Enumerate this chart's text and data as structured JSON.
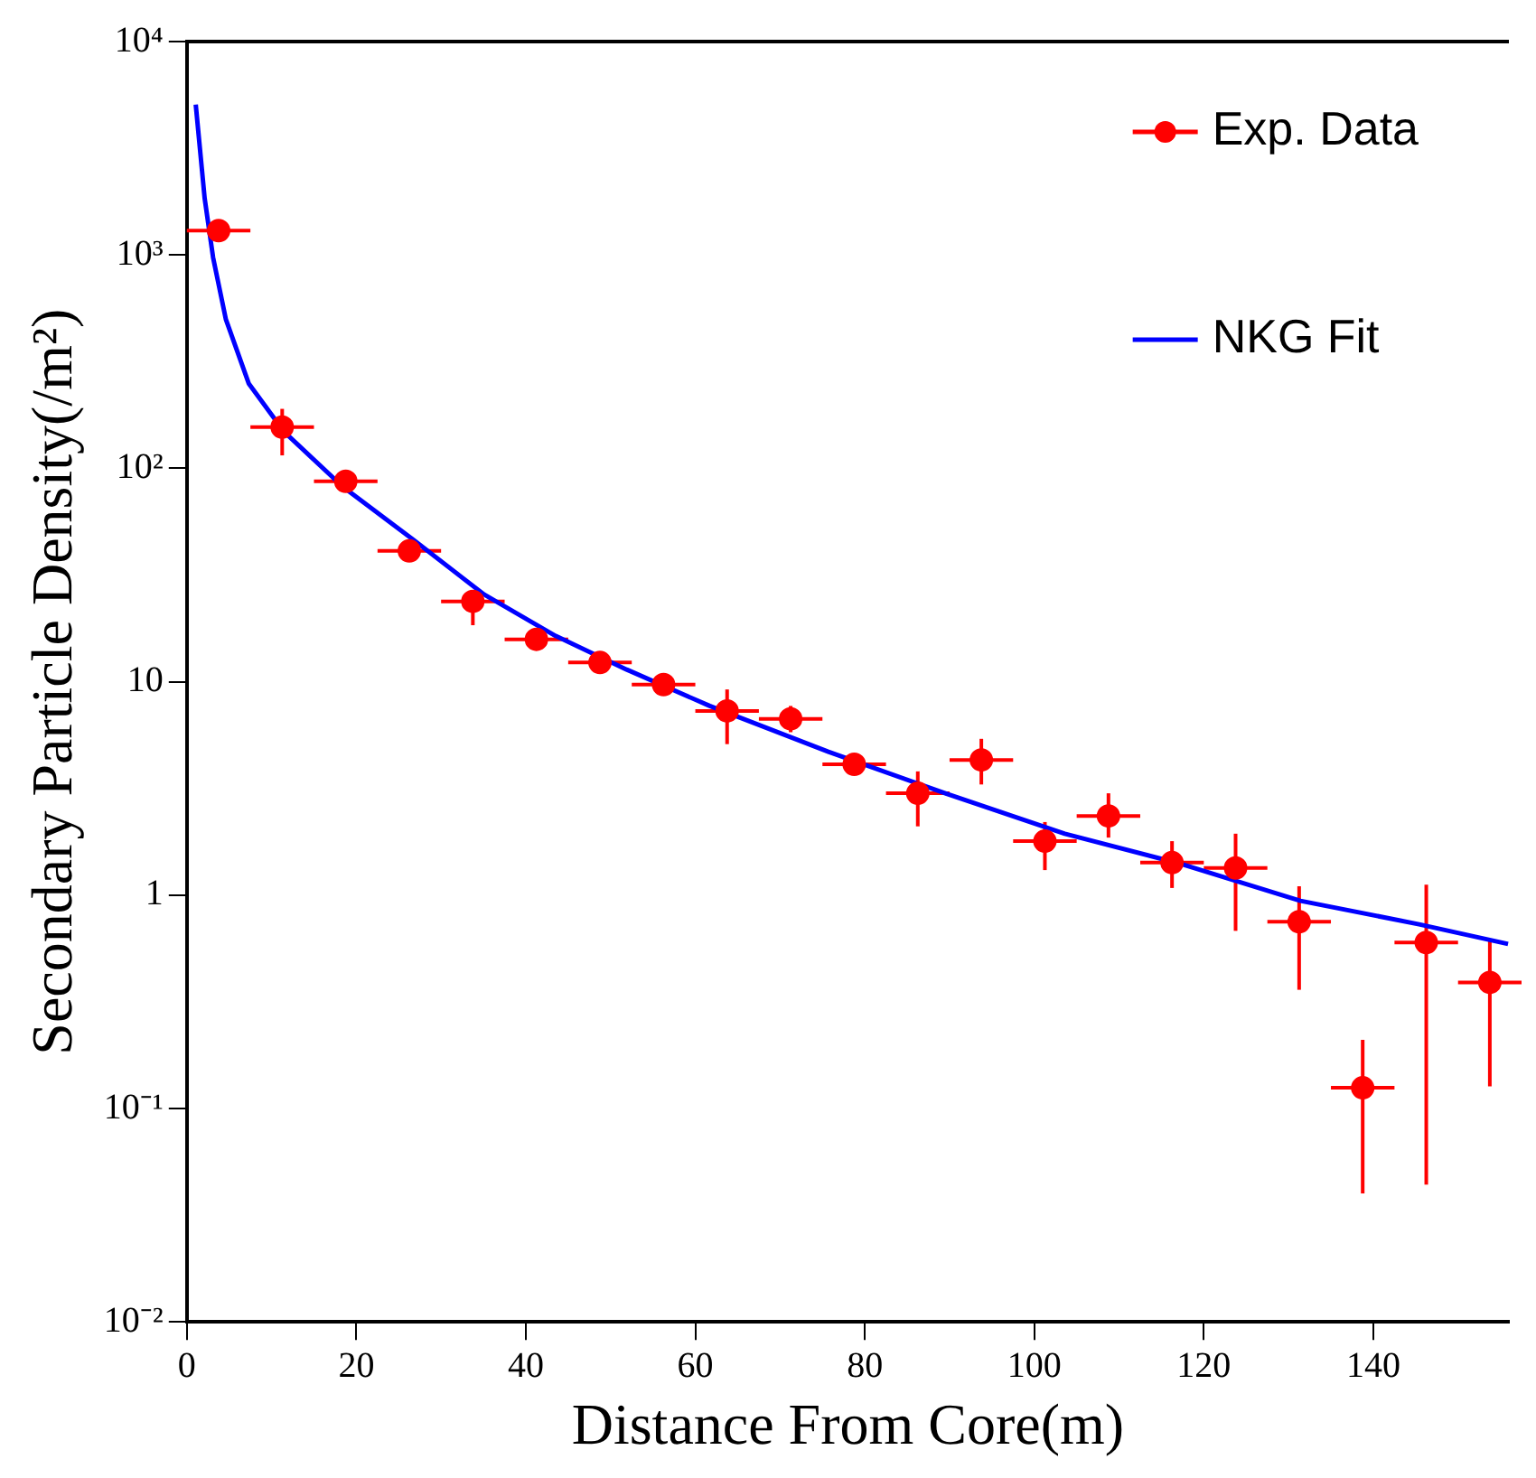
{
  "chart_data": {
    "type": "scatter",
    "xlabel": "Distance From Core(m)",
    "ylabel": "Secondary Particle Density(/m²)",
    "log": "y",
    "grid": false,
    "legend": "top right",
    "marker": "circle",
    "xlim": [
      0,
      156
    ],
    "xticks": [
      0,
      20,
      40,
      60,
      80,
      100,
      120,
      140
    ],
    "ylim": [
      0.01,
      10000
    ],
    "yticks": [
      {
        "value": 0.01,
        "label": "10⁻²"
      },
      {
        "value": 0.1,
        "label": "10⁻¹"
      },
      {
        "value": 1,
        "label": "1"
      },
      {
        "value": 10,
        "label": "10"
      },
      {
        "value": 100,
        "label": "10²"
      },
      {
        "value": 1000,
        "label": "10³"
      },
      {
        "value": 10000,
        "label": "10⁴"
      }
    ],
    "series": [
      {
        "name": "Exp. Data",
        "type": "scatter",
        "color": "#ff0000",
        "x": [
          3.75,
          11.25,
          18.75,
          26.25,
          33.75,
          41.25,
          48.75,
          56.25,
          63.75,
          71.25,
          78.75,
          86.25,
          93.75,
          101.25,
          108.75,
          116.25,
          123.75,
          131.25,
          138.75,
          146.25,
          153.75
        ],
        "values": [
          1300,
          156,
          87,
          41,
          23.8,
          15.8,
          12.3,
          9.7,
          7.3,
          6.7,
          4.1,
          3.0,
          4.3,
          1.79,
          2.35,
          1.42,
          1.34,
          0.75,
          0.125,
          0.6,
          0.39
        ],
        "errors": [
          null,
          [
            115,
            190
          ],
          null,
          null,
          [
            18.4,
            26.7
          ],
          null,
          null,
          null,
          [
            5.1,
            9.2
          ],
          [
            5.8,
            7.7
          ],
          null,
          [
            2.1,
            3.8
          ],
          [
            3.3,
            5.4
          ],
          [
            1.31,
            2.2
          ],
          [
            1.86,
            3.0
          ],
          [
            1.08,
            1.79
          ],
          [
            0.68,
            1.94
          ],
          [
            0.36,
            1.1
          ],
          [
            0.04,
            0.21
          ],
          [
            0.044,
            1.12
          ],
          [
            0.127,
            0.62
          ]
        ],
        "xerrors": [
          3.75,
          3.75,
          3.75,
          3.75,
          3.75,
          3.75,
          3.75,
          3.75,
          3.75,
          3.75,
          3.75,
          3.75,
          3.75,
          3.75,
          3.75,
          3.75,
          3.75,
          3.75,
          3.75,
          3.75,
          3.75
        ]
      },
      {
        "name": "NKG Fit",
        "type": "line",
        "color": "#0000ff",
        "marker": "none",
        "x": [
          1.05,
          2.1,
          3.1,
          4.6,
          7.3,
          11.5,
          18.4,
          26.8,
          35.1,
          43.5,
          51.9,
          61.7,
          75.7,
          89.5,
          103.6,
          117.6,
          131.4,
          145.4,
          155.9
        ],
        "values": [
          5070,
          1845,
          971,
          500,
          250,
          148,
          82,
          46,
          25.6,
          16.4,
          11.4,
          7.7,
          4.7,
          3.0,
          1.94,
          1.39,
          0.94,
          0.73,
          0.59
        ]
      }
    ]
  }
}
